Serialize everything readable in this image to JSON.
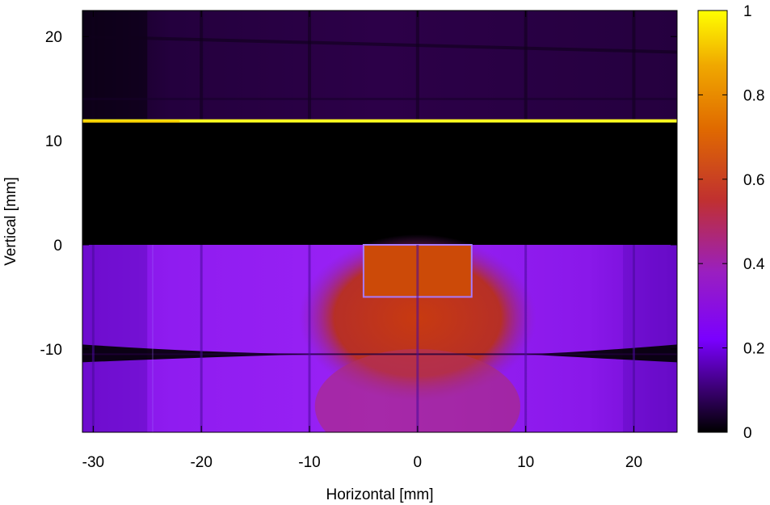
{
  "chart_data": {
    "type": "heatmap",
    "xlabel": "Horizontal [mm]",
    "ylabel": "Vertical [mm]",
    "xlim": [
      -31,
      24
    ],
    "ylim": [
      -18,
      22.5
    ],
    "xticks": [
      -30,
      -20,
      -10,
      0,
      10,
      20
    ],
    "yticks": [
      -10,
      0,
      10,
      20
    ],
    "colorbar": {
      "range": [
        0,
        1
      ],
      "ticks": [
        0,
        0.2,
        0.4,
        0.6,
        0.8,
        1
      ],
      "tick_labels": [
        "0",
        "0.2",
        "0.4",
        "0.6",
        "0.8",
        "1"
      ],
      "palette": [
        "#000000",
        "#3a0070",
        "#7a00ff",
        "#9a1fc0",
        "#c03030",
        "#e06a00",
        "#f0a800",
        "#ffff00"
      ]
    },
    "features": [
      {
        "name": "top-band",
        "y_range": [
          12,
          22.5
        ],
        "value": 0.1
      },
      {
        "name": "bright-line",
        "y": 11.9,
        "value": 1.0
      },
      {
        "name": "dark-band",
        "y_range": [
          0,
          11.8
        ],
        "value": 0.0
      },
      {
        "name": "lower-band",
        "y_range": [
          -18,
          0
        ],
        "value": 0.25
      },
      {
        "name": "central-ellipse",
        "center": [
          0,
          -7
        ],
        "radii": [
          11,
          8
        ],
        "value": 0.5
      },
      {
        "name": "central-rectangle",
        "x_range": [
          -5,
          5
        ],
        "y_range": [
          -5,
          0
        ],
        "value": 0.55
      },
      {
        "name": "dark-arc",
        "y": -10.5,
        "value": 0.0
      }
    ],
    "grid_lines_x": [
      -30,
      -20,
      -10,
      0,
      10,
      20
    ],
    "grid_lines_y": [
      20,
      14
    ]
  }
}
